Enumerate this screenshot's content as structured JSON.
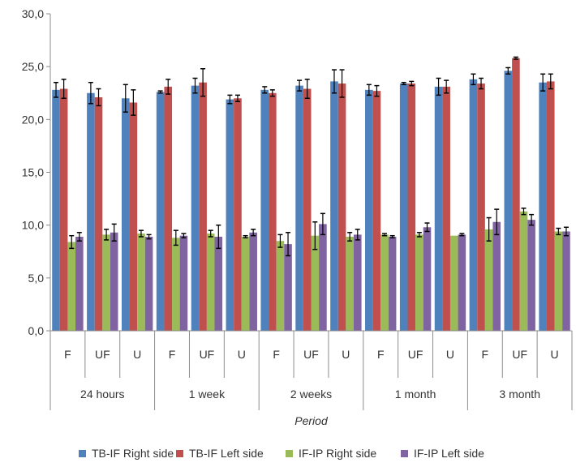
{
  "chart_data": {
    "type": "bar",
    "title": "",
    "xlabel": "Period",
    "ylabel": "",
    "ylim": [
      0,
      30
    ],
    "yticks": [
      "0,0",
      "5,0",
      "10,0",
      "15,0",
      "20,0",
      "25,0",
      "30,0"
    ],
    "grid": false,
    "legend_position": "bottom",
    "groups": [
      {
        "name": "24 hours",
        "categories": [
          "F",
          "UF",
          "U"
        ]
      },
      {
        "name": "1 week",
        "categories": [
          "F",
          "UF",
          "U"
        ]
      },
      {
        "name": "2 weeks",
        "categories": [
          "F",
          "UF",
          "U"
        ]
      },
      {
        "name": "1 month",
        "categories": [
          "F",
          "UF",
          "U"
        ]
      },
      {
        "name": "3 month",
        "categories": [
          "F",
          "UF",
          "U"
        ]
      }
    ],
    "series": [
      {
        "name": "TB-IF Right side",
        "color": "#4F81BD",
        "values": [
          22.8,
          22.5,
          22.0,
          22.6,
          23.2,
          21.9,
          22.8,
          23.2,
          23.6,
          22.8,
          23.4,
          23.1,
          23.8,
          24.6,
          23.5
        ],
        "errors": [
          0.7,
          1.0,
          1.3,
          0.1,
          0.7,
          0.4,
          0.3,
          0.5,
          1.1,
          0.5,
          0.1,
          0.8,
          0.5,
          0.3,
          0.8
        ]
      },
      {
        "name": "TB-IF Left side",
        "color": "#C0504D",
        "values": [
          22.9,
          22.1,
          21.6,
          23.1,
          23.5,
          22.0,
          22.5,
          22.9,
          23.4,
          22.7,
          23.4,
          23.1,
          23.4,
          25.8,
          23.6
        ],
        "errors": [
          0.9,
          0.8,
          1.2,
          0.7,
          1.3,
          0.3,
          0.3,
          0.9,
          1.3,
          0.5,
          0.2,
          0.6,
          0.5,
          0.1,
          0.7
        ]
      },
      {
        "name": "IF-IP Right side",
        "color": "#9BBB59",
        "values": [
          8.4,
          9.1,
          9.2,
          8.8,
          9.2,
          8.9,
          8.5,
          9.0,
          8.9,
          9.1,
          9.1,
          9.0,
          9.6,
          11.3,
          9.4
        ],
        "errors": [
          0.6,
          0.5,
          0.3,
          0.7,
          0.3,
          0.1,
          0.6,
          1.3,
          0.4,
          0.1,
          0.2,
          0.0,
          1.1,
          0.3,
          0.3
        ]
      },
      {
        "name": "IF-IP Left side",
        "color": "#8064A2",
        "values": [
          8.9,
          9.3,
          8.9,
          9.0,
          8.9,
          9.3,
          8.2,
          10.1,
          9.1,
          8.9,
          9.8,
          9.1,
          10.3,
          10.5,
          9.4
        ],
        "errors": [
          0.4,
          0.8,
          0.2,
          0.2,
          1.1,
          0.3,
          1.1,
          1.0,
          0.5,
          0.1,
          0.4,
          0.1,
          1.2,
          0.5,
          0.4
        ]
      }
    ]
  }
}
